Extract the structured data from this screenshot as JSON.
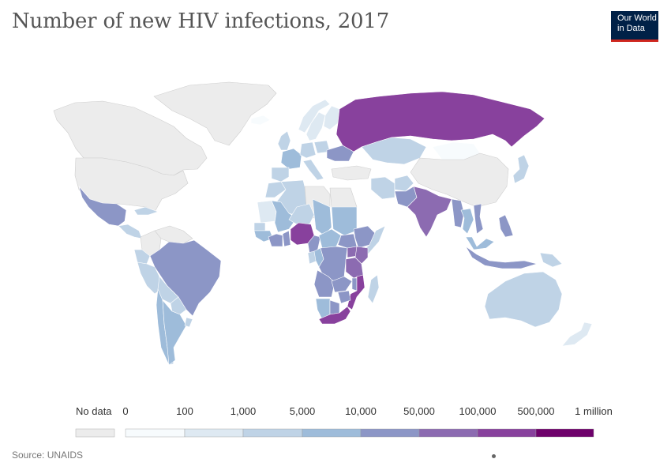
{
  "title": "Number of new HIV infections, 2017",
  "logo": {
    "line1": "Our World",
    "line2": "in Data"
  },
  "source": "Source: UNAIDS",
  "legend": {
    "no_data_label": "No data",
    "bins": [
      "0",
      "100",
      "1,000",
      "5,000",
      "10,000",
      "50,000",
      "100,000",
      "500,000",
      "1 million"
    ],
    "colors": [
      "#f7fbfd",
      "#dee9f2",
      "#bfd3e6",
      "#9ebcda",
      "#8c96c6",
      "#8c6bb1",
      "#88419d",
      "#6e016b"
    ],
    "no_data_color": "#ececec"
  },
  "map_data": {
    "countries": [
      {
        "name": "Greenland",
        "value": null
      },
      {
        "name": "Canada",
        "value": null
      },
      {
        "name": "United States",
        "value": null
      },
      {
        "name": "Mexico",
        "value": 12000
      },
      {
        "name": "Cuba",
        "value": 3500
      },
      {
        "name": "Guatemala",
        "value": 2000
      },
      {
        "name": "Venezuela",
        "value": null
      },
      {
        "name": "Colombia",
        "value": null
      },
      {
        "name": "Ecuador",
        "value": 2200
      },
      {
        "name": "Peru",
        "value": 3200
      },
      {
        "name": "Brazil",
        "value": 48000
      },
      {
        "name": "Bolivia",
        "value": 1200
      },
      {
        "name": "Paraguay",
        "value": 1400
      },
      {
        "name": "Chile",
        "value": 6200
      },
      {
        "name": "Argentina",
        "value": 5500
      },
      {
        "name": "Uruguay",
        "value": 1000
      },
      {
        "name": "Iceland",
        "value": 30
      },
      {
        "name": "Norway",
        "value": 200
      },
      {
        "name": "Sweden",
        "value": 500
      },
      {
        "name": "Finland",
        "value": 150
      },
      {
        "name": "United Kingdom",
        "value": 4300
      },
      {
        "name": "France",
        "value": 6000
      },
      {
        "name": "Spain",
        "value": 3600
      },
      {
        "name": "Germany",
        "value": 2700
      },
      {
        "name": "Italy",
        "value": 3500
      },
      {
        "name": "Poland",
        "value": 1200
      },
      {
        "name": "Ukraine",
        "value": 12000
      },
      {
        "name": "Turkey",
        "value": null
      },
      {
        "name": "Russia",
        "value": 100000
      },
      {
        "name": "Kazakhstan",
        "value": 3500
      },
      {
        "name": "Mongolia",
        "value": 50
      },
      {
        "name": "China",
        "value": null
      },
      {
        "name": "Japan",
        "value": 1000
      },
      {
        "name": "Iran",
        "value": 4000
      },
      {
        "name": "Afghanistan",
        "value": 1400
      },
      {
        "name": "Pakistan",
        "value": 20000
      },
      {
        "name": "India",
        "value": 88000
      },
      {
        "name": "Myanmar",
        "value": 11000
      },
      {
        "name": "Thailand",
        "value": 6400
      },
      {
        "name": "Vietnam",
        "value": 11000
      },
      {
        "name": "Philippines",
        "value": 12000
      },
      {
        "name": "Malaysia",
        "value": 5600
      },
      {
        "name": "Indonesia",
        "value": 49000
      },
      {
        "name": "Papua New Guinea",
        "value": 2800
      },
      {
        "name": "Australia",
        "value": 1000
      },
      {
        "name": "New Zealand",
        "value": 200
      },
      {
        "name": "Morocco",
        "value": 1000
      },
      {
        "name": "Algeria",
        "value": 1000
      },
      {
        "name": "Libya",
        "value": null
      },
      {
        "name": "Egypt",
        "value": null
      },
      {
        "name": "Mauritania",
        "value": 500
      },
      {
        "name": "Mali",
        "value": 7000
      },
      {
        "name": "Niger",
        "value": 1800
      },
      {
        "name": "Chad",
        "value": 7300
      },
      {
        "name": "Sudan",
        "value": 5000
      },
      {
        "name": "Senegal",
        "value": 1400
      },
      {
        "name": "Guinea",
        "value": 8600
      },
      {
        "name": "Côte d'Ivoire",
        "value": 30000
      },
      {
        "name": "Ghana",
        "value": 20000
      },
      {
        "name": "Nigeria",
        "value": 210000
      },
      {
        "name": "Cameroon",
        "value": 36000
      },
      {
        "name": "Central African Republic",
        "value": 7200
      },
      {
        "name": "South Sudan",
        "value": 17000
      },
      {
        "name": "Ethiopia",
        "value": 16000
      },
      {
        "name": "Somalia",
        "value": 1000
      },
      {
        "name": "DR Congo",
        "value": 20000
      },
      {
        "name": "Congo",
        "value": 9000
      },
      {
        "name": "Gabon",
        "value": 2500
      },
      {
        "name": "Kenya",
        "value": 53000
      },
      {
        "name": "Uganda",
        "value": 50000
      },
      {
        "name": "Tanzania",
        "value": 65000
      },
      {
        "name": "Angola",
        "value": 28000
      },
      {
        "name": "Zambia",
        "value": 48000
      },
      {
        "name": "Malawi",
        "value": 39000
      },
      {
        "name": "Mozambique",
        "value": 130000
      },
      {
        "name": "Zimbabwe",
        "value": 41000
      },
      {
        "name": "Namibia",
        "value": 7400
      },
      {
        "name": "Botswana",
        "value": 12000
      },
      {
        "name": "South Africa",
        "value": 270000
      },
      {
        "name": "Madagascar",
        "value": 4700
      }
    ]
  }
}
